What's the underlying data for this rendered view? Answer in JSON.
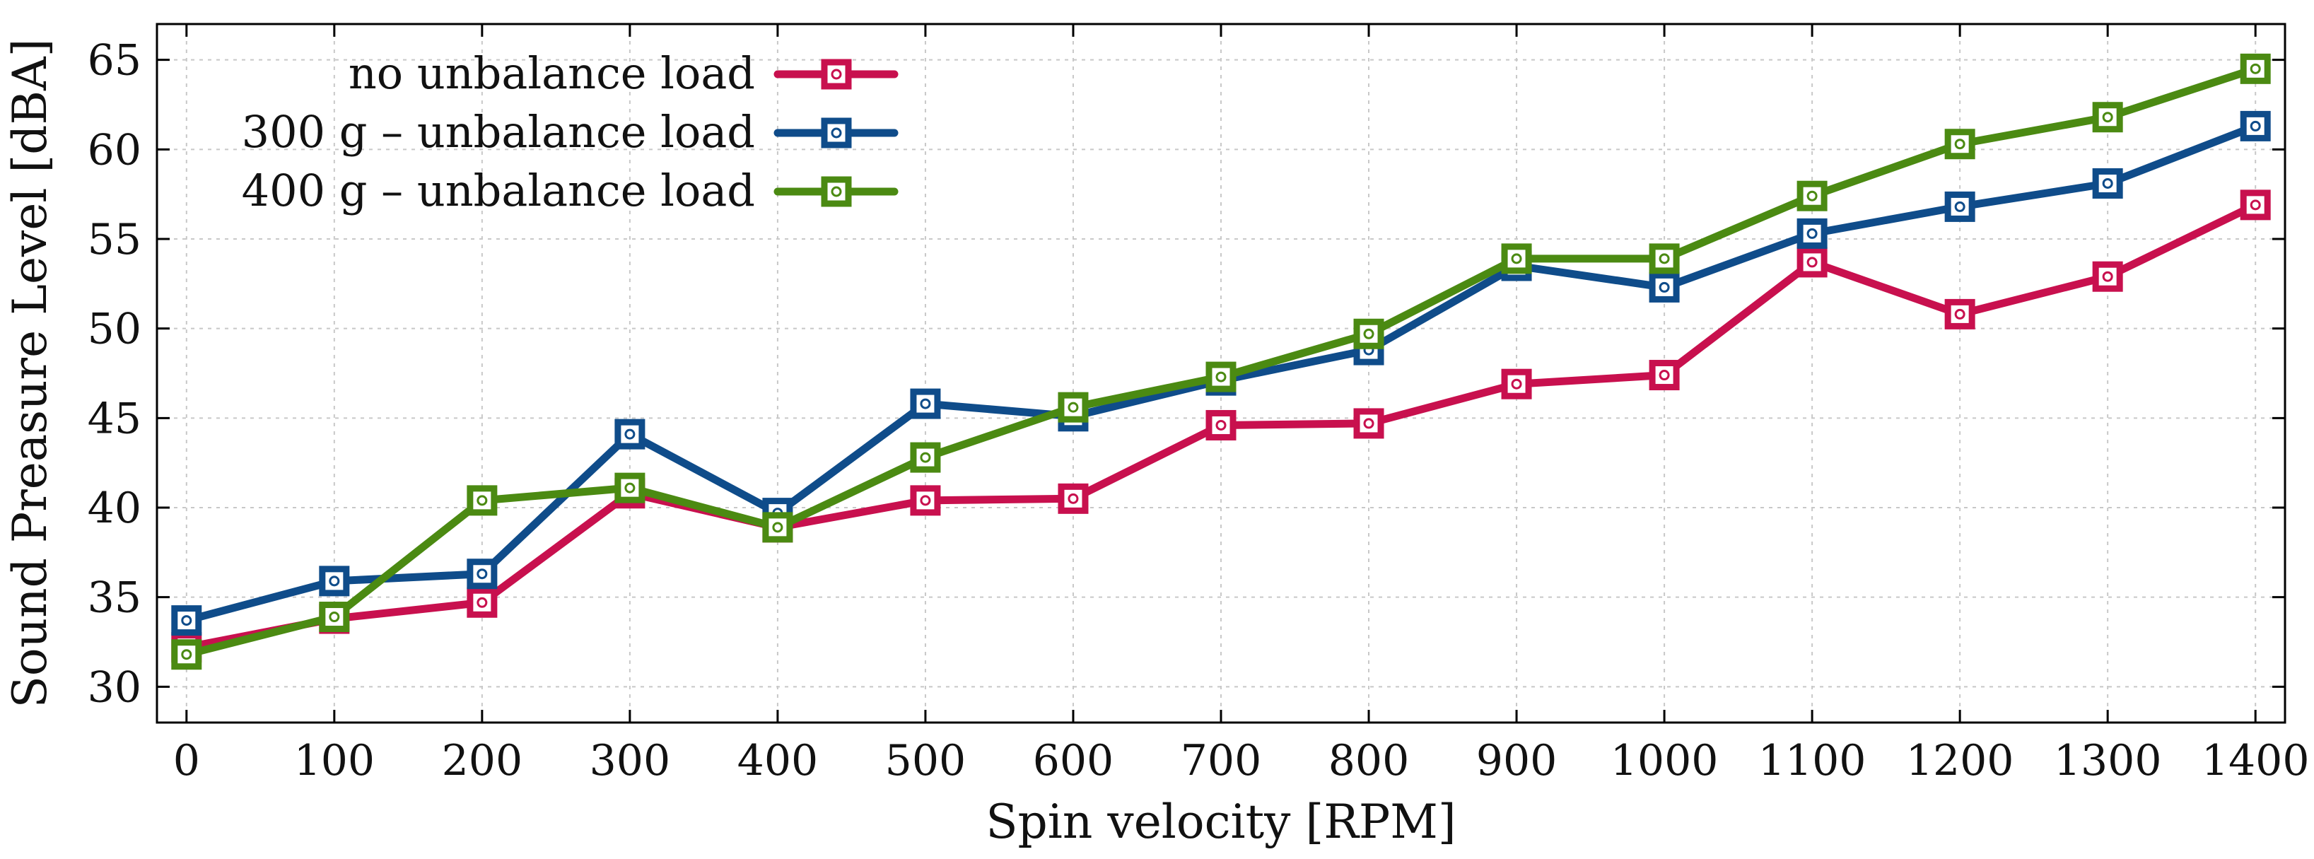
{
  "chart_data": {
    "type": "line",
    "title": "",
    "xlabel": "Spin velocity [RPM]",
    "ylabel": "Sound Preasure Level [dBA]",
    "x": [
      0,
      100,
      200,
      300,
      400,
      500,
      600,
      700,
      800,
      900,
      1000,
      1100,
      1200,
      1300,
      1400
    ],
    "xticks": [
      "0",
      "100",
      "200",
      "300",
      "400",
      "500",
      "600",
      "700",
      "800",
      "900",
      "1000",
      "1100",
      "1200",
      "1300",
      "1400"
    ],
    "yticks": [
      "30",
      "35",
      "40",
      "45",
      "50",
      "55",
      "60",
      "65"
    ],
    "xlim": [
      -20,
      1420
    ],
    "ylim": [
      28,
      67
    ],
    "grid": true,
    "legend_position": "top-left",
    "series": [
      {
        "name": "no unbalance load",
        "color": "#c8104e",
        "values": [
          32.2,
          33.8,
          34.7,
          40.8,
          38.9,
          40.4,
          40.5,
          44.6,
          44.7,
          46.9,
          47.4,
          53.7,
          50.8,
          52.9,
          56.9
        ]
      },
      {
        "name": "300 g – unbalance load",
        "color": "#0f4c8a",
        "values": [
          33.7,
          35.9,
          36.3,
          44.1,
          39.7,
          45.8,
          45.1,
          47.1,
          48.8,
          53.5,
          52.3,
          55.3,
          56.8,
          58.1,
          61.3
        ]
      },
      {
        "name": "400 g – unbalance load",
        "color": "#4b8a12",
        "values": [
          31.8,
          33.9,
          40.4,
          41.1,
          38.9,
          42.8,
          45.6,
          47.3,
          49.7,
          53.9,
          53.9,
          57.4,
          60.3,
          61.8,
          64.5
        ]
      }
    ]
  }
}
